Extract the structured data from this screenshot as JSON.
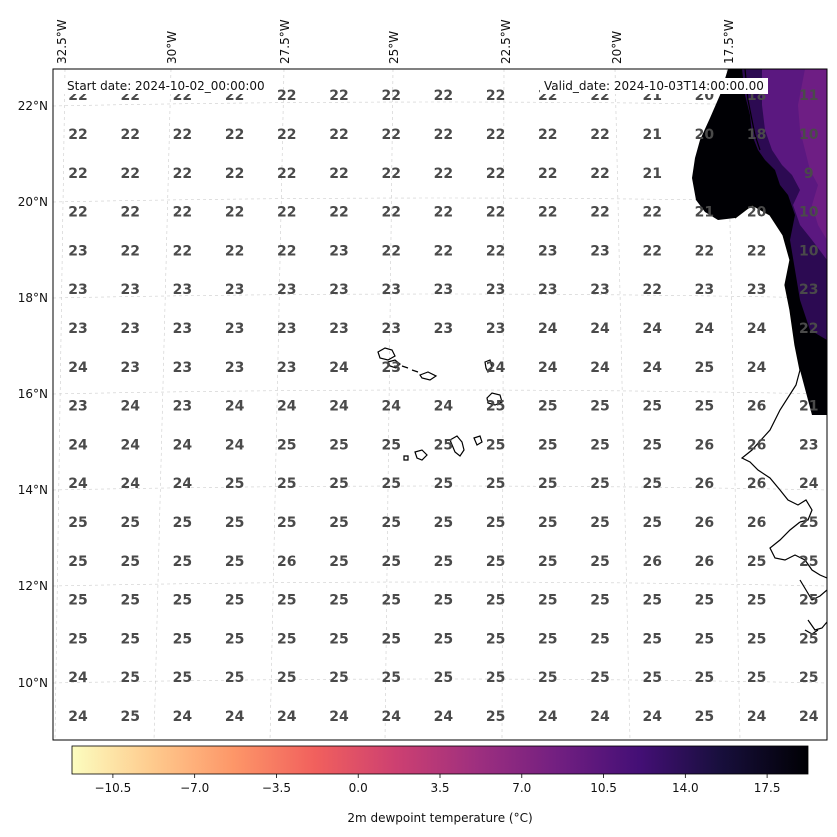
{
  "header": {
    "start_date": "Start date: 2024-10-02_00:00:00",
    "valid_date": "Valid_date: 2024-10-03T14:00:00.00"
  },
  "axes": {
    "lon_labels": [
      "32.5°W",
      "30°W",
      "27.5°W",
      "25°W",
      "22.5°W",
      "20°W",
      "17.5°W"
    ],
    "lat_labels": [
      "22°N",
      "20°N",
      "18°N",
      "16°N",
      "14°N",
      "12°N",
      "10°N"
    ]
  },
  "colorbar": {
    "label": "2m dewpoint temperature ($^{\\circ}$C)",
    "display_label": "2m dewpoint temperature (°C)",
    "tick_labels": [
      "−10.5",
      "−7.0",
      "−3.5",
      "0.0",
      "3.5",
      "7.0",
      "10.5",
      "14.0",
      "17.5"
    ],
    "tick_values": [
      -10.5,
      -7.0,
      -3.5,
      0.0,
      3.5,
      7.0,
      10.5,
      14.0,
      17.5
    ],
    "range": [
      -12.25,
      19.25
    ],
    "colormap": "magma_r",
    "colors": [
      "#fcfdbf",
      "#feca8d",
      "#fd9668",
      "#f1605d",
      "#cd4071",
      "#9e2f7f",
      "#721f81",
      "#440f76",
      "#180f3d",
      "#000004"
    ]
  },
  "chart_data": {
    "type": "heatmap",
    "title": "",
    "xlabel": "",
    "ylabel": "",
    "xlim": [
      -33.0,
      -15.0
    ],
    "ylim": [
      9.0,
      22.8
    ],
    "colorbar_label": "2m dewpoint temperature (°C)",
    "annotated_values": [
      [
        "22",
        "22",
        "22",
        "22",
        "22",
        "22",
        "22",
        "22",
        "22",
        "22",
        "22",
        "21",
        "20",
        "18",
        "10"
      ],
      [
        "22",
        "22",
        "22",
        "22",
        "22",
        "22",
        "22",
        "22",
        "22",
        "22",
        "22",
        "21",
        "",
        "",
        "9"
      ],
      [
        "22",
        "22",
        "22",
        "22",
        "22",
        "22",
        "22",
        "22",
        "22",
        "22",
        "22",
        "22",
        "21",
        "20",
        "10"
      ],
      [
        "23",
        "22",
        "22",
        "22",
        "22",
        "23",
        "22",
        "22",
        "22",
        "23",
        "23",
        "22",
        "22",
        "22",
        "10"
      ],
      [
        "23",
        "23",
        "23",
        "23",
        "23",
        "23",
        "23",
        "23",
        "23",
        "23",
        "23",
        "22",
        "23",
        "23",
        "23"
      ],
      [
        "23",
        "23",
        "23",
        "23",
        "23",
        "23",
        "23",
        "23",
        "23",
        "24",
        "24",
        "24",
        "24",
        "24",
        "22"
      ],
      [
        "24",
        "23",
        "23",
        "23",
        "23",
        "24",
        "23",
        "",
        "24",
        "24",
        "24",
        "24",
        "25",
        "24",
        ""
      ],
      [
        "23",
        "24",
        "23",
        "24",
        "24",
        "24",
        "24",
        "24",
        "25",
        "25",
        "25",
        "25",
        "25",
        "26",
        "21"
      ],
      [
        "24",
        "24",
        "24",
        "24",
        "25",
        "25",
        "25",
        "25",
        "25",
        "25",
        "25",
        "25",
        "26",
        "26",
        "23"
      ],
      [
        "24",
        "24",
        "24",
        "25",
        "25",
        "25",
        "25",
        "25",
        "25",
        "25",
        "25",
        "25",
        "26",
        "26",
        "24"
      ],
      [
        "25",
        "25",
        "25",
        "25",
        "25",
        "25",
        "25",
        "25",
        "25",
        "25",
        "25",
        "25",
        "26",
        "26",
        "25"
      ],
      [
        "25",
        "25",
        "25",
        "25",
        "26",
        "25",
        "25",
        "25",
        "25",
        "25",
        "25",
        "26",
        "26",
        "25",
        "25"
      ],
      [
        "25",
        "25",
        "25",
        "25",
        "25",
        "25",
        "25",
        "25",
        "25",
        "25",
        "25",
        "25",
        "25",
        "25",
        "25"
      ],
      [
        "25",
        "25",
        "25",
        "25",
        "25",
        "25",
        "25",
        "25",
        "25",
        "25",
        "25",
        "25",
        "25",
        "25",
        "25"
      ],
      [
        "24",
        "25",
        "25",
        "25",
        "25",
        "25",
        "25",
        "25",
        "25",
        "25",
        "25",
        "25",
        "25",
        "25",
        "25"
      ],
      [
        "24",
        "25",
        "24",
        "24",
        "24",
        "24",
        "24",
        "24",
        "25",
        "24",
        "24",
        "24",
        "25",
        "24",
        "24"
      ]
    ],
    "top_row_partial": [
      "22",
      "22",
      "22",
      "22",
      "22",
      "22",
      "22",
      "22",
      "22",
      "22",
      "22",
      "21",
      "20",
      "18",
      "11"
    ]
  }
}
